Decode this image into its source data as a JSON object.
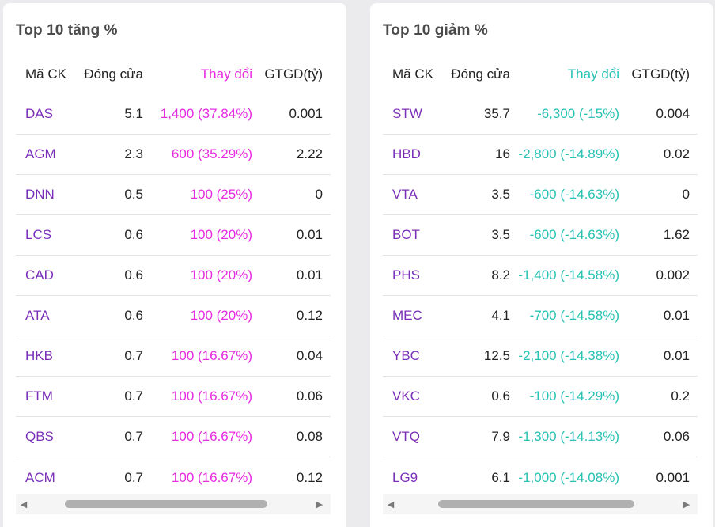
{
  "gainers": {
    "title": "Top 10 tăng %",
    "headers": [
      "Mã CK",
      "Đóng cửa",
      "Thay đổi",
      "GTGD(tỷ)"
    ],
    "rows": [
      [
        "DAS",
        "5.1",
        "1,400 (37.84%)",
        "0.001"
      ],
      [
        "AGM",
        "2.3",
        "600 (35.29%)",
        "2.22"
      ],
      [
        "DNN",
        "0.5",
        "100 (25%)",
        "0"
      ],
      [
        "LCS",
        "0.6",
        "100 (20%)",
        "0.01"
      ],
      [
        "CAD",
        "0.6",
        "100 (20%)",
        "0.01"
      ],
      [
        "ATA",
        "0.6",
        "100 (20%)",
        "0.12"
      ],
      [
        "HKB",
        "0.7",
        "100 (16.67%)",
        "0.04"
      ],
      [
        "FTM",
        "0.7",
        "100 (16.67%)",
        "0.06"
      ],
      [
        "QBS",
        "0.7",
        "100 (16.67%)",
        "0.08"
      ],
      [
        "ACM",
        "0.7",
        "100 (16.67%)",
        "0.12"
      ]
    ]
  },
  "losers": {
    "title": "Top 10 giảm %",
    "headers": [
      "Mã CK",
      "Đóng cửa",
      "Thay đổi",
      "GTGD(tỷ)"
    ],
    "rows": [
      [
        "STW",
        "35.7",
        "-6,300 (-15%)",
        "0.004"
      ],
      [
        "HBD",
        "16",
        "-2,800 (-14.89%)",
        "0.02"
      ],
      [
        "VTA",
        "3.5",
        "-600 (-14.63%)",
        "0"
      ],
      [
        "BOT",
        "3.5",
        "-600 (-14.63%)",
        "1.62"
      ],
      [
        "PHS",
        "8.2",
        "-1,400 (-14.58%)",
        "0.002"
      ],
      [
        "MEC",
        "4.1",
        "-700 (-14.58%)",
        "0.01"
      ],
      [
        "YBC",
        "12.5",
        "-2,100 (-14.38%)",
        "0.01"
      ],
      [
        "VKC",
        "0.6",
        "-100 (-14.29%)",
        "0.2"
      ],
      [
        "VTQ",
        "7.9",
        "-1,300 (-14.13%)",
        "0.06"
      ],
      [
        "LG9",
        "6.1",
        "-1,000 (-14.08%)",
        "0.001"
      ]
    ]
  },
  "colors": {
    "ticker": "#7a2fb8",
    "gain": "#e62ce0",
    "loss": "#27c2b4"
  },
  "icons": {
    "scroll_left": "triangle-left-icon",
    "scroll_right": "triangle-right-icon"
  }
}
